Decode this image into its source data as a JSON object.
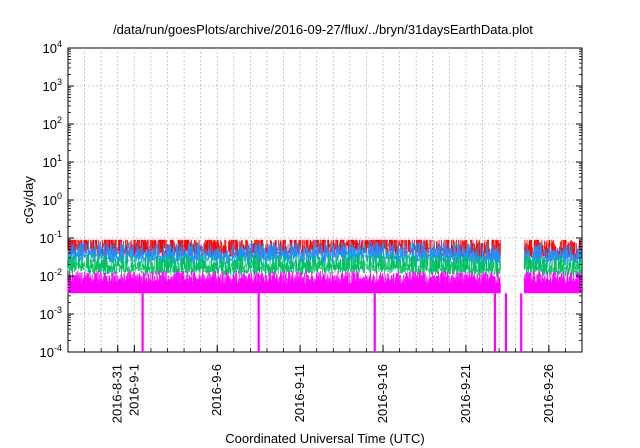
{
  "chart_data": {
    "type": "line",
    "title": "/data/run/goesPlots/archive/2016-09-27/flux/../bryn/31daysEarthData.plot",
    "xlabel": "Coordinated Universal Time (UTC)",
    "ylabel": "cGy/day",
    "y_scale": "log",
    "ylim": [
      0.0001,
      10000
    ],
    "y_ticks": [
      {
        "base": "10",
        "exp": "-4",
        "value": 0.0001
      },
      {
        "base": "10",
        "exp": "-3",
        "value": 0.001
      },
      {
        "base": "10",
        "exp": "-2",
        "value": 0.01
      },
      {
        "base": "10",
        "exp": "-1",
        "value": 0.1
      },
      {
        "base": "10",
        "exp": "0",
        "value": 1
      },
      {
        "base": "10",
        "exp": "1",
        "value": 10
      },
      {
        "base": "10",
        "exp": "2",
        "value": 100
      },
      {
        "base": "10",
        "exp": "3",
        "value": 1000
      },
      {
        "base": "10",
        "exp": "4",
        "value": 10000
      }
    ],
    "x_range": [
      "2016-08-28",
      "2016-09-28"
    ],
    "x_ticks": [
      "2016-8-31",
      "2016-9-1",
      "2016-9-6",
      "2016-9-11",
      "2016-9-16",
      "2016-9-21",
      "2016-9-26"
    ],
    "grid": true,
    "legend": "none",
    "series": [
      {
        "color": "#ff0000",
        "x": [
          "2016-08-28",
          "2016-09-03",
          "2016-09-09",
          "2016-09-15",
          "2016-09-21",
          "2016-09-23",
          "2016-09-25",
          "2016-09-28"
        ],
        "values": [
          0.06,
          0.055,
          0.05,
          0.07,
          0.05,
          0.045,
          0.05,
          0.045
        ]
      },
      {
        "color": "#1e90ff",
        "x": [
          "2016-08-28",
          "2016-09-03",
          "2016-09-09",
          "2016-09-15",
          "2016-09-21",
          "2016-09-23",
          "2016-09-25",
          "2016-09-28"
        ],
        "values": [
          0.04,
          0.035,
          0.035,
          0.04,
          0.035,
          0.03,
          0.035,
          0.03
        ]
      },
      {
        "color": "#00c060",
        "x": [
          "2016-08-28",
          "2016-09-03",
          "2016-09-09",
          "2016-09-15",
          "2016-09-21",
          "2016-09-23",
          "2016-09-25",
          "2016-09-28"
        ],
        "values": [
          0.02,
          0.018,
          0.018,
          0.02,
          0.018,
          0.016,
          0.018,
          0.016
        ]
      },
      {
        "color": "#ff00ff",
        "x": [
          "2016-08-28",
          "2016-09-03",
          "2016-09-09",
          "2016-09-15",
          "2016-09-21",
          "2016-09-23",
          "2016-09-25",
          "2016-09-28"
        ],
        "values": [
          0.008,
          0.008,
          0.008,
          0.008,
          0.008,
          0.008,
          0.008,
          0.008
        ]
      }
    ],
    "gaps": [
      {
        "start": "2016-09-23T02:00",
        "end": "2016-09-24T12:00"
      }
    ],
    "dropouts": [
      "2016-09-01T12:00",
      "2016-09-08T12:00",
      "2016-09-15T12:00",
      "2016-09-22T18:00",
      "2016-09-23T10:00",
      "2016-09-24T08:00"
    ]
  }
}
